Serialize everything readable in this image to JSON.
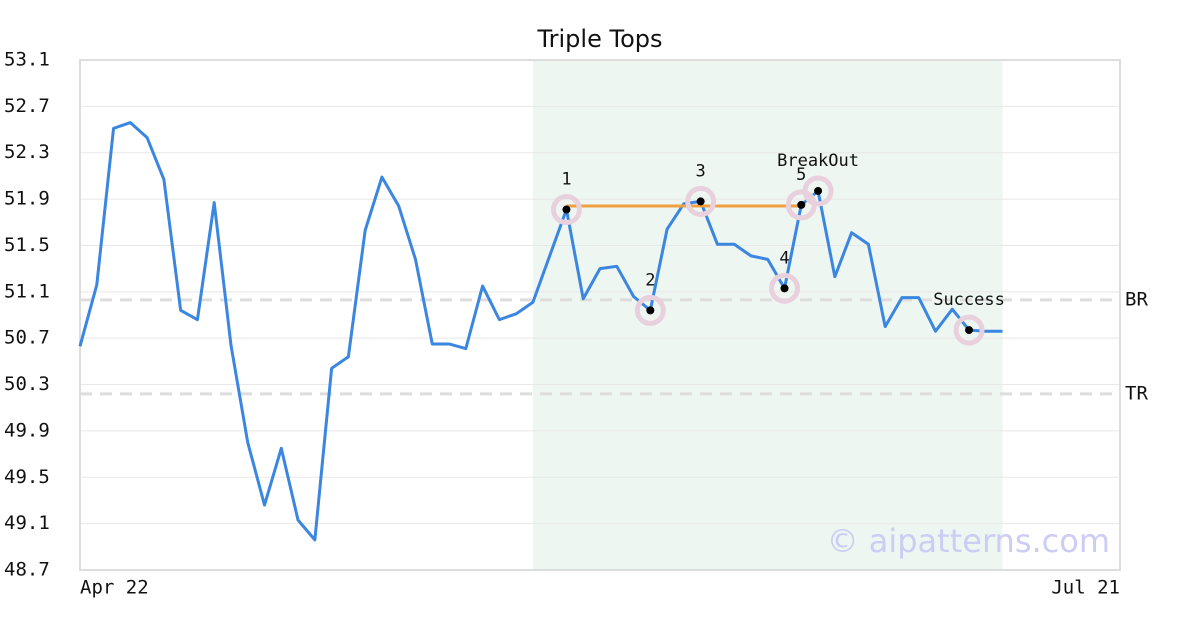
{
  "chart_data": {
    "type": "line",
    "title": "Triple Tops",
    "categories": [
      "Apr 22",
      null,
      null,
      null,
      null,
      null,
      null,
      null,
      null,
      null,
      null,
      null,
      null,
      null,
      null,
      null,
      null,
      null,
      null,
      null,
      null,
      null,
      null,
      null,
      null,
      null,
      null,
      null,
      null,
      null,
      null,
      null,
      null,
      null,
      null,
      null,
      null,
      null,
      null,
      null,
      null,
      null,
      null,
      null,
      null,
      null,
      null,
      null,
      null,
      null,
      null,
      null,
      null,
      null,
      null,
      null,
      null,
      null,
      null,
      null,
      null,
      null,
      "Jul 21"
    ],
    "series": [
      {
        "color": "#3a86e0",
        "values": [
          50.63,
          51.16,
          52.51,
          52.56,
          52.43,
          52.07,
          50.94,
          50.86,
          51.87,
          50.64,
          49.8,
          49.26,
          49.75,
          49.13,
          48.96,
          50.44,
          50.54,
          51.63,
          52.09,
          51.84,
          51.38,
          50.65,
          50.65,
          50.61,
          51.15,
          50.86,
          50.91,
          51.01,
          51.41,
          51.81,
          51.04,
          51.3,
          51.32,
          51.06,
          50.94,
          51.64,
          51.86,
          51.88,
          51.51,
          51.51,
          51.41,
          51.38,
          51.13,
          51.85,
          51.97,
          51.23,
          51.61,
          51.51,
          50.8,
          51.05,
          51.05,
          50.76,
          50.95,
          50.77,
          50.76,
          50.76,
          null,
          null,
          null,
          null,
          null,
          null,
          null
        ]
      }
    ],
    "ylim": [
      48.7,
      53.1
    ],
    "yticks": [
      48.7,
      49.1,
      49.5,
      49.9,
      50.3,
      50.7,
      51.1,
      51.5,
      51.9,
      52.3,
      52.7,
      53.1
    ],
    "grid": true,
    "shaded_span": {
      "from": 27,
      "to": 55,
      "color": "#eef6f2"
    },
    "reference_lines": [
      {
        "label": "BR",
        "value": 51.03
      },
      {
        "label": "TR",
        "value": 50.22
      }
    ],
    "resistance": {
      "from": 29,
      "to": 43,
      "value": 51.84,
      "color": "#f0a040"
    },
    "annotations": [
      {
        "label": "1",
        "index": 29
      },
      {
        "label": "2",
        "index": 34
      },
      {
        "label": "3",
        "index": 37
      },
      {
        "label": "4",
        "index": 42
      },
      {
        "label": "5",
        "index": 43
      },
      {
        "label": "BreakOut",
        "index": 44
      },
      {
        "label": "Success",
        "index": 53
      }
    ],
    "watermark": "© aipatterns.com"
  }
}
